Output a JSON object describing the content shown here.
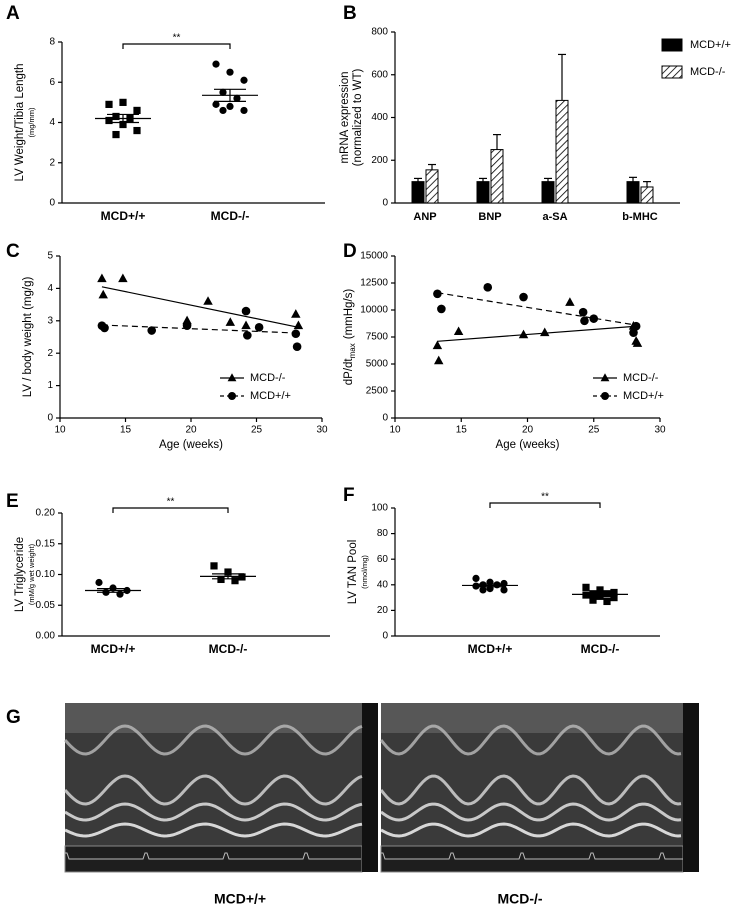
{
  "chart_data": [
    {
      "type": "dotplot",
      "label": "A",
      "ylabel": "LV Weight/Tibia Length",
      "ylabel_unit": "(mg/mm)",
      "categories": [
        "MCD+/+",
        "MCD-/-"
      ],
      "markers": [
        "square",
        "circle"
      ],
      "points": [
        [
          4.9,
          5.0,
          4.6,
          4.3,
          4.2,
          4.1,
          3.9,
          3.6,
          3.4
        ],
        [
          6.9,
          6.5,
          6.1,
          5.5,
          5.2,
          4.9,
          4.8,
          4.6,
          4.6
        ]
      ],
      "means": [
        4.2,
        5.35
      ],
      "sems": [
        0.2,
        0.3
      ],
      "annotation": "**",
      "ylim": [
        0,
        8
      ],
      "yticks": [
        0,
        2,
        4,
        6,
        8
      ]
    },
    {
      "type": "bar",
      "label": "B",
      "ylabel_lines": [
        "mRNA expression",
        "(normalized to WT)"
      ],
      "categories": [
        "ANP",
        "BNP",
        "a-SA",
        "b-MHC"
      ],
      "series": [
        {
          "name": "MCD+/+",
          "color": "#000000",
          "hatch": false,
          "values": [
            100,
            100,
            100,
            100
          ],
          "errors": [
            15,
            15,
            15,
            20
          ]
        },
        {
          "name": "MCD-/-",
          "color": "#000000",
          "hatch": true,
          "values": [
            155,
            250,
            480,
            75
          ],
          "errors": [
            25,
            70,
            215,
            25
          ]
        }
      ],
      "ylim": [
        0,
        800
      ],
      "yticks": [
        0,
        200,
        400,
        600,
        800
      ],
      "legend": "top-right"
    },
    {
      "type": "scatter",
      "label": "C",
      "ylabel": "LV / body weight (mg/g)",
      "xlabel": "Age (weeks)",
      "series": [
        {
          "name": "MCD-/-",
          "marker": "triangle",
          "dashed": false,
          "x": [
            13.2,
            13.3,
            14.8,
            19.7,
            21.3,
            23.0,
            24.2,
            28.0,
            28.2
          ],
          "y": [
            4.3,
            3.8,
            4.3,
            3.0,
            3.6,
            2.95,
            2.85,
            3.2,
            2.85
          ],
          "fit": {
            "x": [
              13.2,
              28.2
            ],
            "y": [
              4.05,
              2.8
            ]
          }
        },
        {
          "name": "MCD+/+",
          "marker": "circle",
          "dashed": true,
          "x": [
            13.2,
            13.4,
            17.0,
            19.7,
            24.2,
            24.3,
            25.2,
            28.0,
            28.1
          ],
          "y": [
            2.85,
            2.78,
            2.7,
            2.85,
            3.3,
            2.55,
            2.8,
            2.6,
            2.2
          ],
          "fit": {
            "x": [
              13.2,
              28.2
            ],
            "y": [
              2.87,
              2.62
            ]
          }
        }
      ],
      "xlim": [
        10,
        30
      ],
      "xticks": [
        10,
        15,
        20,
        25,
        30
      ],
      "ylim": [
        0,
        5
      ],
      "yticks": [
        0,
        1,
        2,
        3,
        4,
        5
      ],
      "legend": "bottom-right"
    },
    {
      "type": "scatter",
      "label": "D",
      "ylabel": {
        "main": "dP/dt",
        "sub": "max",
        "unit": "(mmHg/s)"
      },
      "xlabel": "Age (weeks)",
      "series": [
        {
          "name": "MCD-/-",
          "marker": "triangle",
          "dashed": false,
          "x": [
            13.2,
            13.3,
            14.8,
            19.7,
            21.3,
            23.2,
            28.0,
            28.2,
            28.3
          ],
          "y": [
            6700,
            5300,
            8000,
            7700,
            7900,
            10700,
            8500,
            7100,
            6900
          ],
          "fit": {
            "x": [
              13.2,
              28.2
            ],
            "y": [
              7100,
              8500
            ]
          }
        },
        {
          "name": "MCD+/+",
          "marker": "circle",
          "dashed": true,
          "x": [
            13.2,
            13.5,
            17.0,
            19.7,
            24.2,
            24.3,
            25.0,
            28.0,
            28.2
          ],
          "y": [
            11500,
            10100,
            12100,
            11200,
            9800,
            9000,
            9200,
            7900,
            8500
          ],
          "fit": {
            "x": [
              13.2,
              28.2
            ],
            "y": [
              11600,
              8600
            ]
          }
        }
      ],
      "xlim": [
        10,
        30
      ],
      "xticks": [
        10,
        15,
        20,
        25,
        30
      ],
      "ylim": [
        0,
        15000
      ],
      "yticks": [
        0,
        2500,
        5000,
        7500,
        10000,
        12500,
        15000
      ],
      "legend": "bottom-right"
    },
    {
      "type": "dotplot",
      "label": "E",
      "ylabel": "LV Triglyceride",
      "ylabel_unit": "(mM/g wet weight)",
      "categories": [
        "MCD+/+",
        "MCD-/-"
      ],
      "markers": [
        "circle",
        "square"
      ],
      "points": [
        [
          0.087,
          0.078,
          0.074,
          0.071,
          0.068
        ],
        [
          0.114,
          0.104,
          0.096,
          0.092,
          0.09
        ]
      ],
      "means": [
        0.074,
        0.097
      ],
      "sems": [
        0.003,
        0.004
      ],
      "annotation": "**",
      "ylim": [
        0,
        0.2
      ],
      "yticks": [
        {
          "value": 0,
          "label": "0.00"
        },
        {
          "value": 0.05,
          "label": "0.05"
        },
        {
          "value": 0.1,
          "label": "0.10"
        },
        {
          "value": 0.15,
          "label": "0.15"
        },
        {
          "value": 0.2,
          "label": "0.20"
        }
      ]
    },
    {
      "type": "dotplot",
      "label": "F",
      "ylabel": "LV TAN Pool",
      "ylabel_unit": "(nmol/mg)",
      "categories": [
        "MCD+/+",
        "MCD-/-"
      ],
      "markers": [
        "circle",
        "square"
      ],
      "points": [
        [
          45,
          42,
          41,
          40,
          40,
          39,
          37,
          36,
          36
        ],
        [
          38,
          36,
          34,
          33,
          33,
          32,
          31,
          30,
          28,
          27
        ]
      ],
      "means": [
        39.5,
        32.5
      ],
      "sems": [
        1,
        1
      ],
      "annotation": "**",
      "ylim": [
        0,
        100
      ],
      "yticks": [
        0,
        20,
        40,
        60,
        80,
        100
      ]
    }
  ],
  "echo": {
    "label": "G",
    "captions": [
      "MCD+/+",
      "MCD-/-"
    ]
  }
}
